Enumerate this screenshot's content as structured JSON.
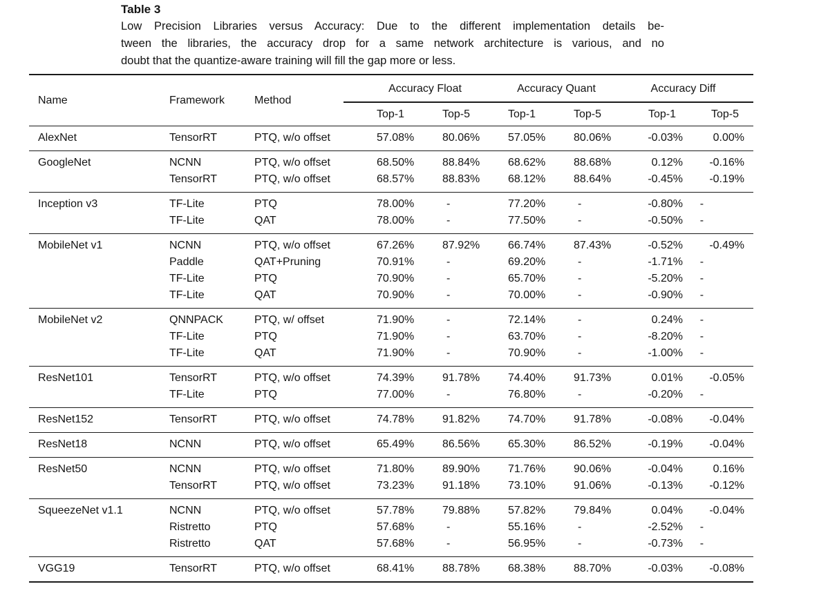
{
  "caption": {
    "label": "Table 3",
    "lines": [
      "Low Precision Libraries versus Accuracy: Due to the different implementation details be-",
      "tween the libraries, the accuracy drop for a same network architecture is various, and no",
      "doubt that the quantize-aware training will fill the gap more or less."
    ]
  },
  "table": {
    "headers": {
      "name": "Name",
      "framework": "Framework",
      "method": "Method",
      "group_float": "Accuracy Float",
      "group_quant": "Accuracy Quant",
      "group_diff": "Accuracy Diff",
      "top1": "Top-1",
      "top5": "Top-5"
    },
    "groups": [
      {
        "name": "AlexNet",
        "rows": [
          [
            "TensorRT",
            "PTQ, w/o offset",
            "57.08%",
            "80.06%",
            "57.05%",
            "80.06%",
            "-0.03%",
            "0.00%"
          ]
        ]
      },
      {
        "name": "GoogleNet",
        "rows": [
          [
            "NCNN",
            "PTQ, w/o offset",
            "68.50%",
            "88.84%",
            "68.62%",
            "88.68%",
            "0.12%",
            "-0.16%"
          ],
          [
            "TensorRT",
            "PTQ, w/o offset",
            "68.57%",
            "88.83%",
            "68.12%",
            "88.64%",
            "-0.45%",
            "-0.19%"
          ]
        ]
      },
      {
        "name": "Inception v3",
        "rows": [
          [
            "TF-Lite",
            "PTQ",
            "78.00%",
            "-",
            "77.20%",
            "-",
            "-0.80%",
            "-"
          ],
          [
            "TF-Lite",
            "QAT",
            "78.00%",
            "-",
            "77.50%",
            "-",
            "-0.50%",
            "-"
          ]
        ]
      },
      {
        "name": "MobileNet v1",
        "rows": [
          [
            "NCNN",
            "PTQ, w/o offset",
            "67.26%",
            "87.92%",
            "66.74%",
            "87.43%",
            "-0.52%",
            "-0.49%"
          ],
          [
            "Paddle",
            "QAT+Pruning",
            "70.91%",
            "-",
            "69.20%",
            "-",
            "-1.71%",
            "-"
          ],
          [
            "TF-Lite",
            "PTQ",
            "70.90%",
            "-",
            "65.70%",
            "-",
            "-5.20%",
            "-"
          ],
          [
            "TF-Lite",
            "QAT",
            "70.90%",
            "-",
            "70.00%",
            "-",
            "-0.90%",
            "-"
          ]
        ]
      },
      {
        "name": "MobileNet v2",
        "rows": [
          [
            "QNNPACK",
            "PTQ, w/ offset",
            "71.90%",
            "-",
            "72.14%",
            "-",
            "0.24%",
            "-"
          ],
          [
            "TF-Lite",
            "PTQ",
            "71.90%",
            "-",
            "63.70%",
            "-",
            "-8.20%",
            "-"
          ],
          [
            "TF-Lite",
            "QAT",
            "71.90%",
            "-",
            "70.90%",
            "-",
            "-1.00%",
            "-"
          ]
        ]
      },
      {
        "name": "ResNet101",
        "rows": [
          [
            "TensorRT",
            "PTQ, w/o offset",
            "74.39%",
            "91.78%",
            "74.40%",
            "91.73%",
            "0.01%",
            "-0.05%"
          ],
          [
            "TF-Lite",
            "PTQ",
            "77.00%",
            "-",
            "76.80%",
            "-",
            "-0.20%",
            "-"
          ]
        ]
      },
      {
        "name": "ResNet152",
        "rows": [
          [
            "TensorRT",
            "PTQ, w/o offset",
            "74.78%",
            "91.82%",
            "74.70%",
            "91.78%",
            "-0.08%",
            "-0.04%"
          ]
        ]
      },
      {
        "name": "ResNet18",
        "rows": [
          [
            "NCNN",
            "PTQ, w/o offset",
            "65.49%",
            "86.56%",
            "65.30%",
            "86.52%",
            "-0.19%",
            "-0.04%"
          ]
        ]
      },
      {
        "name": "ResNet50",
        "rows": [
          [
            "NCNN",
            "PTQ, w/o offset",
            "71.80%",
            "89.90%",
            "71.76%",
            "90.06%",
            "-0.04%",
            "0.16%"
          ],
          [
            "TensorRT",
            "PTQ, w/o offset",
            "73.23%",
            "91.18%",
            "73.10%",
            "91.06%",
            "-0.13%",
            "-0.12%"
          ]
        ]
      },
      {
        "name": "SqueezeNet v1.1",
        "rows": [
          [
            "NCNN",
            "PTQ, w/o offset",
            "57.78%",
            "79.88%",
            "57.82%",
            "79.84%",
            "0.04%",
            "-0.04%"
          ],
          [
            "Ristretto",
            "PTQ",
            "57.68%",
            "-",
            "55.16%",
            "-",
            "-2.52%",
            "-"
          ],
          [
            "Ristretto",
            "QAT",
            "57.68%",
            "-",
            "56.95%",
            "-",
            "-0.73%",
            "-"
          ]
        ]
      },
      {
        "name": "VGG19",
        "rows": [
          [
            "TensorRT",
            "PTQ, w/o offset",
            "68.41%",
            "88.78%",
            "68.38%",
            "88.70%",
            "-0.03%",
            "-0.08%"
          ]
        ]
      }
    ]
  }
}
